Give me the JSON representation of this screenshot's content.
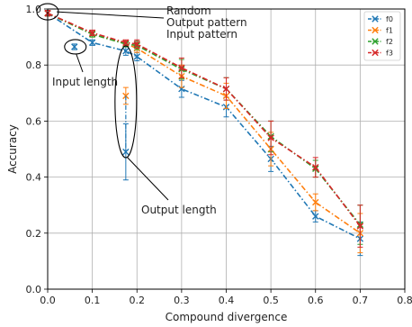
{
  "chart_data": {
    "type": "line",
    "xlabel": "Compound divergence",
    "ylabel": "Accuracy",
    "xlim": [
      0.0,
      0.8
    ],
    "ylim": [
      0.0,
      1.0
    ],
    "x_ticks": [
      0.0,
      0.1,
      0.2,
      0.3,
      0.4,
      0.5,
      0.6,
      0.7,
      0.8
    ],
    "x_tick_labels": [
      "0.0",
      "0.1",
      "0.2",
      "0.3",
      "0.4",
      "0.5",
      "0.6",
      "0.7",
      "0.8"
    ],
    "y_ticks": [
      0.0,
      0.2,
      0.4,
      0.6,
      0.8,
      1.0
    ],
    "y_tick_labels": [
      "0.0",
      "0.2",
      "0.4",
      "0.6",
      "0.8",
      "1.0"
    ],
    "grid": true,
    "legend_position": "top-right",
    "series": [
      {
        "name": "f0",
        "color": "#1f77b4",
        "x": [
          0.0,
          0.1,
          0.175,
          0.2,
          0.3,
          0.4,
          0.5,
          0.6,
          0.7
        ],
        "y": [
          0.985,
          0.88,
          0.85,
          0.83,
          0.715,
          0.65,
          0.465,
          0.26,
          0.18
        ],
        "err": [
          0.01,
          0.01,
          0.015,
          0.015,
          0.03,
          0.035,
          0.045,
          0.02,
          0.06
        ]
      },
      {
        "name": "f1",
        "color": "#ff7f0e",
        "x": [
          0.0,
          0.1,
          0.175,
          0.2,
          0.3,
          0.4,
          0.5,
          0.6,
          0.7
        ],
        "y": [
          0.985,
          0.91,
          0.875,
          0.86,
          0.76,
          0.69,
          0.5,
          0.31,
          0.2
        ],
        "err": [
          0.01,
          0.01,
          0.01,
          0.015,
          0.04,
          0.045,
          0.06,
          0.03,
          0.07
        ]
      },
      {
        "name": "f2",
        "color": "#2ca02c",
        "x": [
          0.0,
          0.1,
          0.175,
          0.2,
          0.3,
          0.4,
          0.5,
          0.6,
          0.7
        ],
        "y": [
          0.985,
          0.91,
          0.875,
          0.87,
          0.785,
          0.715,
          0.545,
          0.43,
          0.23
        ],
        "err": [
          0.01,
          0.01,
          0.01,
          0.015,
          0.035,
          0.04,
          0.055,
          0.03,
          0.07
        ]
      },
      {
        "name": "f3",
        "color": "#d62728",
        "x": [
          0.0,
          0.1,
          0.175,
          0.2,
          0.3,
          0.4,
          0.5,
          0.6,
          0.7
        ],
        "y": [
          0.985,
          0.915,
          0.88,
          0.875,
          0.79,
          0.715,
          0.54,
          0.435,
          0.225
        ],
        "err": [
          0.01,
          0.01,
          0.01,
          0.015,
          0.035,
          0.04,
          0.06,
          0.035,
          0.075
        ]
      }
    ],
    "isolated_points": [
      {
        "series": "f0",
        "x": 0.06,
        "y": 0.865,
        "err": 0.01
      },
      {
        "series": "f1",
        "x": 0.175,
        "y": 0.69,
        "err": 0.03
      },
      {
        "series": "f0",
        "x": 0.175,
        "y": 0.49,
        "err": 0.1
      }
    ],
    "annotations": [
      {
        "text": "Random",
        "target": [
          0.0,
          0.99
        ]
      },
      {
        "text": "Output pattern",
        "target": [
          0.0,
          0.99
        ]
      },
      {
        "text": "Input pattern",
        "target": [
          0.0,
          0.99
        ]
      },
      {
        "text": "Input length",
        "target": [
          0.06,
          0.865
        ]
      },
      {
        "text": "Output length",
        "target": [
          0.175,
          0.62
        ]
      }
    ]
  }
}
